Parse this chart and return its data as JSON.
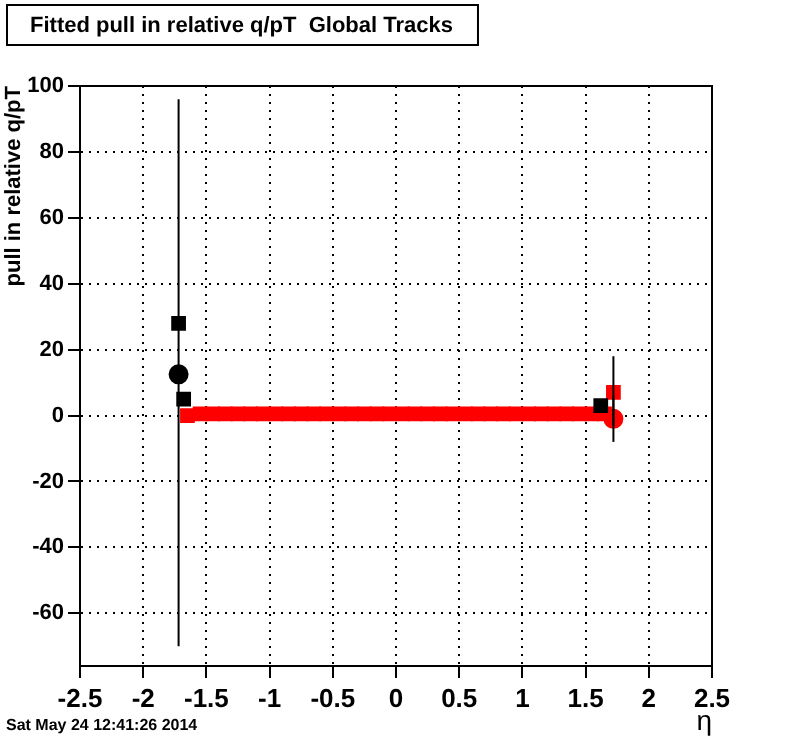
{
  "chart_data": {
    "type": "scatter",
    "title": "Fitted pull in relative q/pT  Global Tracks",
    "xlabel": "η",
    "ylabel": "pull in relative q/pT",
    "annotations": [
      "Sat May 24 12:41:26 2014"
    ],
    "xlim": [
      -2.5,
      2.5
    ],
    "xticks": [
      -2.5,
      -2,
      -1.5,
      -1,
      -0.5,
      0,
      0.5,
      1,
      1.5,
      2,
      2.5
    ],
    "ylim": [
      -76,
      100
    ],
    "yticks": [
      -60,
      -40,
      -20,
      0,
      20,
      40,
      60,
      80,
      100
    ],
    "grid": true,
    "legend": false,
    "series": [
      {
        "color": "#000000",
        "marker": "square",
        "x": [
          -1.72,
          -1.68,
          1.62
        ],
        "values": [
          28,
          5,
          3
        ],
        "errors": [
          [
            -70,
            96
          ],
          null,
          null
        ]
      },
      {
        "color": "#000000",
        "marker": "circle",
        "x": [
          -1.72
        ],
        "values": [
          12.5
        ]
      },
      {
        "color": "#ff0000",
        "marker": "square",
        "x": [
          -1.65,
          -1.55,
          -1.45,
          -1.35,
          -1.25,
          -1.15,
          -1.05,
          -0.95,
          -0.85,
          -0.75,
          -0.65,
          -0.55,
          -0.45,
          -0.35,
          -0.25,
          -0.15,
          -0.05,
          0.05,
          0.15,
          0.25,
          0.35,
          0.45,
          0.55,
          0.65,
          0.75,
          0.85,
          0.95,
          1.05,
          1.15,
          1.25,
          1.35,
          1.45,
          1.55,
          1.65,
          1.72
        ],
        "values": [
          0,
          0.5,
          0.5,
          0.5,
          0.5,
          0.5,
          0.5,
          0.5,
          0.5,
          0.5,
          0.5,
          0.5,
          0.5,
          0.5,
          0.5,
          0.5,
          0.5,
          0.5,
          0.5,
          0.5,
          0.5,
          0.5,
          0.5,
          0.5,
          0.5,
          0.5,
          0.5,
          0.5,
          0.5,
          0.5,
          0.5,
          0.5,
          0.5,
          0.5,
          7
        ],
        "errors": [
          null,
          null,
          null,
          null,
          null,
          null,
          null,
          null,
          null,
          null,
          null,
          null,
          null,
          null,
          null,
          null,
          null,
          null,
          null,
          null,
          null,
          null,
          null,
          null,
          null,
          null,
          null,
          null,
          null,
          null,
          null,
          null,
          null,
          null,
          [
            -3,
            18
          ]
        ]
      },
      {
        "color": "#ff0000",
        "marker": "circle",
        "x": [
          1.72
        ],
        "values": [
          -1
        ],
        "errors": [
          [
            -8,
            6
          ]
        ]
      }
    ]
  }
}
